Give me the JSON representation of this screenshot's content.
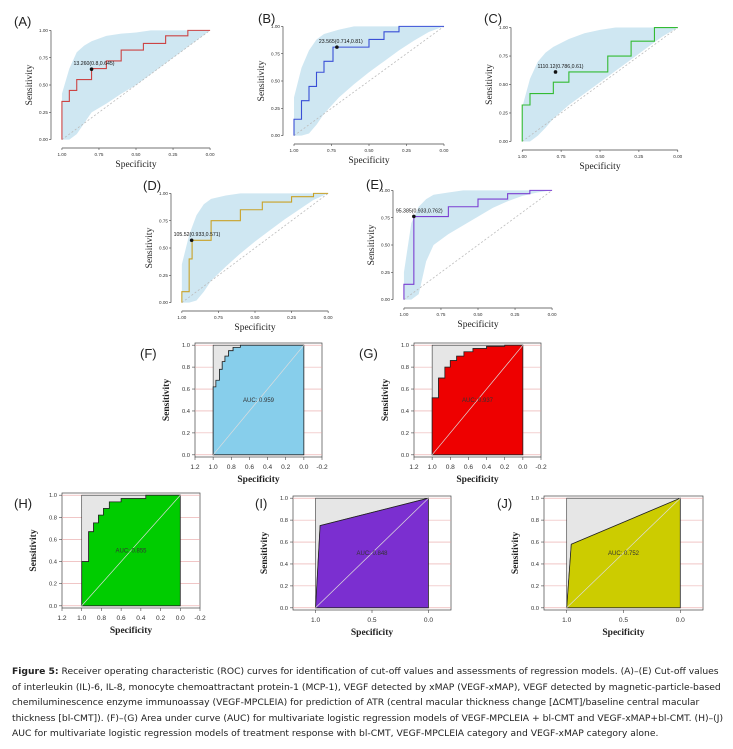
{
  "figure": {
    "caption_label": "Figure 5:",
    "caption_text": "Receiver operating characteristic (ROC) curves for identification of cut-off values and assessments of regression models. (A)–(E) Cut-off values of interleukin (IL)-6, IL-8, monocyte chemoattractant protein-1 (MCP-1), VEGF detected by xMAP (VEGF-xMAP), VEGF detected by magnetic-particle-based chemiluminescence enzyme immunoassay (VEGF-MPCLEIA) for prediction of ATR (central macular thickness change [ΔCMT]/baseline central macular thickness [bl-CMT]). (F)–(G) Area under curve (AUC) for multivariate logistic regression models of VEGF-MPCLEIA + bl-CMT and VEGF-xMAP+bl-CMT. (H)–(J) AUC for multivariate logistic regression models of treatment response with bl-CMT, VEGF-MPCLEIA category and VEGF-xMAP category alone."
  },
  "colors": {
    "ci_band": "#cfe7f2",
    "diag": "#bbbbbb",
    "grid_red": "#e8a3a3",
    "auc_gray": "#e6e6e6"
  },
  "chart_data": [
    {
      "panel": "(A)",
      "type": "line",
      "style": "ci",
      "xlabel": "Specificity",
      "ylabel": "Sensitivity",
      "xticks": [
        "1.00",
        "0.75",
        "0.50",
        "0.25",
        "0.00"
      ],
      "yticks": [
        "0.00",
        "0.25",
        "0.50",
        "0.75",
        "1.00"
      ],
      "xlim": [
        1,
        0
      ],
      "ylim": [
        0,
        1
      ],
      "line_color": "#cc4444",
      "x": [
        1,
        1,
        0.95,
        0.95,
        0.9,
        0.9,
        0.8,
        0.8,
        0.7,
        0.7,
        0.6,
        0.6,
        0.45,
        0.45,
        0.3,
        0.3,
        0.15,
        0.15,
        0
      ],
      "y": [
        0,
        0.35,
        0.35,
        0.45,
        0.45,
        0.55,
        0.55,
        0.65,
        0.65,
        0.72,
        0.72,
        0.82,
        0.82,
        0.88,
        0.88,
        0.95,
        0.95,
        1,
        1
      ],
      "ci_upper": [
        0.42,
        0.65,
        0.8,
        0.86,
        0.9,
        0.95,
        0.97,
        0.98,
        1,
        1,
        1,
        1,
        1
      ],
      "ci_lower": [
        0,
        0,
        0.05,
        0.15,
        0.25,
        0.33,
        0.42,
        0.5,
        0.6,
        0.7,
        0.8,
        0.9,
        1
      ],
      "ci_x": [
        1,
        0.95,
        0.9,
        0.85,
        0.8,
        0.7,
        0.6,
        0.5,
        0.4,
        0.3,
        0.2,
        0.1,
        0
      ],
      "annotation": "13.260(0.8,0.645)",
      "annot_point": [
        0.8,
        0.645
      ]
    },
    {
      "panel": "(B)",
      "type": "line",
      "style": "ci",
      "xlabel": "Specificity",
      "ylabel": "Sensitivity",
      "xticks": [
        "1.00",
        "0.75",
        "0.50",
        "0.25",
        "0.00"
      ],
      "yticks": [
        "0.00",
        "0.25",
        "0.50",
        "0.75",
        "1.00"
      ],
      "xlim": [
        1,
        0
      ],
      "ylim": [
        0,
        1
      ],
      "line_color": "#3a4fd6",
      "x": [
        1,
        1,
        0.95,
        0.95,
        0.9,
        0.9,
        0.85,
        0.85,
        0.8,
        0.8,
        0.74,
        0.74,
        0.5,
        0.5,
        0.4,
        0.4,
        0.3,
        0.3,
        0
      ],
      "y": [
        0,
        0.15,
        0.15,
        0.32,
        0.32,
        0.45,
        0.45,
        0.58,
        0.58,
        0.68,
        0.68,
        0.81,
        0.81,
        0.88,
        0.88,
        0.95,
        0.95,
        1,
        1
      ],
      "ci_upper": [
        0.35,
        0.62,
        0.78,
        0.88,
        0.93,
        0.97,
        1,
        1,
        1,
        1,
        1,
        1,
        1
      ],
      "ci_lower": [
        0,
        0,
        0.02,
        0.1,
        0.2,
        0.35,
        0.47,
        0.58,
        0.68,
        0.78,
        0.87,
        0.95,
        1
      ],
      "ci_x": [
        1,
        0.95,
        0.9,
        0.85,
        0.8,
        0.7,
        0.6,
        0.5,
        0.4,
        0.3,
        0.2,
        0.1,
        0
      ],
      "annotation": "23.565(0.714,0.81)",
      "annot_point": [
        0.714,
        0.81
      ]
    },
    {
      "panel": "(C)",
      "type": "line",
      "style": "ci",
      "xlabel": "Specificity",
      "ylabel": "Sensitivity",
      "xticks": [
        "1.00",
        "0.75",
        "0.50",
        "0.25",
        "0.00"
      ],
      "yticks": [
        "0.00",
        "0.25",
        "0.50",
        "0.75",
        "1.00"
      ],
      "xlim": [
        1,
        0
      ],
      "ylim": [
        0,
        1
      ],
      "line_color": "#33bb33",
      "x": [
        1,
        1,
        0.95,
        0.95,
        0.8,
        0.8,
        0.7,
        0.7,
        0.45,
        0.45,
        0.3,
        0.3,
        0.15,
        0.15,
        0
      ],
      "y": [
        0,
        0.32,
        0.32,
        0.42,
        0.42,
        0.52,
        0.52,
        0.61,
        0.61,
        0.75,
        0.75,
        0.88,
        0.88,
        1,
        1
      ],
      "ci_upper": [
        0.3,
        0.55,
        0.7,
        0.78,
        0.83,
        0.9,
        0.95,
        0.98,
        1,
        1,
        1,
        1,
        1
      ],
      "ci_lower": [
        0,
        0,
        0.05,
        0.12,
        0.2,
        0.32,
        0.42,
        0.52,
        0.62,
        0.72,
        0.82,
        0.92,
        1
      ],
      "ci_x": [
        1,
        0.95,
        0.9,
        0.85,
        0.8,
        0.7,
        0.6,
        0.5,
        0.4,
        0.3,
        0.2,
        0.1,
        0
      ],
      "annotation": "1110.12(0.786,0.61)",
      "annot_point": [
        0.786,
        0.61
      ]
    },
    {
      "panel": "(D)",
      "type": "line",
      "style": "ci",
      "xlabel": "Specificity",
      "ylabel": "Sensitivity",
      "xticks": [
        "1.00",
        "0.75",
        "0.50",
        "0.25",
        "0.00"
      ],
      "yticks": [
        "0.00",
        "0.25",
        "0.50",
        "0.75",
        "1.00"
      ],
      "xlim": [
        1,
        0
      ],
      "ylim": [
        0,
        1
      ],
      "line_color": "#c9a227",
      "x": [
        1,
        1,
        0.95,
        0.95,
        0.93,
        0.93,
        0.8,
        0.8,
        0.6,
        0.6,
        0.45,
        0.45,
        0.25,
        0.25,
        0.1,
        0.1,
        0
      ],
      "y": [
        0,
        0.1,
        0.1,
        0.4,
        0.4,
        0.57,
        0.57,
        0.75,
        0.75,
        0.85,
        0.85,
        0.92,
        0.92,
        0.97,
        0.97,
        1,
        1
      ],
      "ci_upper": [
        0.35,
        0.62,
        0.8,
        0.9,
        0.95,
        0.98,
        1,
        1,
        1,
        1,
        1,
        1,
        1
      ],
      "ci_lower": [
        0,
        0,
        0.02,
        0.1,
        0.2,
        0.33,
        0.45,
        0.56,
        0.66,
        0.76,
        0.85,
        0.94,
        1
      ],
      "ci_x": [
        1,
        0.95,
        0.9,
        0.85,
        0.8,
        0.7,
        0.6,
        0.5,
        0.4,
        0.3,
        0.2,
        0.1,
        0
      ],
      "annotation": "105.52(0.933,0.571)",
      "annot_point": [
        0.933,
        0.571
      ]
    },
    {
      "panel": "(E)",
      "type": "line",
      "style": "ci",
      "xlabel": "Specificity",
      "ylabel": "Sensitivity",
      "xticks": [
        "1.00",
        "0.75",
        "0.50",
        "0.25",
        "0.00"
      ],
      "yticks": [
        "0.00",
        "0.25",
        "0.50",
        "0.75",
        "1.00"
      ],
      "xlim": [
        1,
        0
      ],
      "ylim": [
        0,
        1
      ],
      "line_color": "#7b3fd1",
      "x": [
        1,
        1,
        0.933,
        0.933,
        0.7,
        0.7,
        0.5,
        0.5,
        0.3,
        0.3,
        0.15,
        0.15,
        0
      ],
      "y": [
        0,
        0.14,
        0.14,
        0.76,
        0.76,
        0.85,
        0.85,
        0.92,
        0.92,
        0.97,
        0.97,
        1,
        1
      ],
      "ci_upper": [
        0.25,
        0.7,
        0.85,
        0.92,
        0.96,
        0.98,
        1,
        1,
        1,
        1,
        1,
        1,
        1
      ],
      "ci_lower": [
        0,
        0,
        0.05,
        0.35,
        0.5,
        0.6,
        0.68,
        0.76,
        0.84,
        0.9,
        0.95,
        0.98,
        1
      ],
      "ci_x": [
        1,
        0.95,
        0.9,
        0.85,
        0.8,
        0.7,
        0.6,
        0.5,
        0.4,
        0.3,
        0.2,
        0.1,
        0
      ],
      "annotation": "95.385(0.933,0.762)",
      "annot_point": [
        0.933,
        0.762
      ]
    },
    {
      "panel": "(F)",
      "type": "area",
      "style": "auc",
      "xlabel": "Specificity",
      "ylabel": "Sensitivity",
      "xticks": [
        "1.2",
        "1.0",
        "0.8",
        "0.6",
        "0.4",
        "0.2",
        "0.0",
        "-0.2"
      ],
      "yticks": [
        "0.0",
        "0.2",
        "0.4",
        "0.6",
        "0.8",
        "1.0"
      ],
      "xlim": [
        1.2,
        -0.2
      ],
      "ylim": [
        0,
        1
      ],
      "fill_color": "#87ceeb",
      "auc_label": "AUC: 0.959",
      "x": [
        1,
        1,
        0.97,
        0.97,
        0.93,
        0.93,
        0.9,
        0.9,
        0.87,
        0.87,
        0.83,
        0.83,
        0.78,
        0.78,
        0.7,
        0.7,
        0
      ],
      "y": [
        0,
        0.62,
        0.62,
        0.68,
        0.68,
        0.78,
        0.78,
        0.85,
        0.85,
        0.9,
        0.9,
        0.95,
        0.95,
        0.98,
        0.98,
        1,
        1
      ]
    },
    {
      "panel": "(G)",
      "type": "area",
      "style": "auc",
      "xlabel": "Specificity",
      "ylabel": "Sensitivity",
      "xticks": [
        "1.2",
        "1.0",
        "0.8",
        "0.6",
        "0.4",
        "0.2",
        "0.0",
        "-0.2"
      ],
      "yticks": [
        "0.0",
        "0.2",
        "0.4",
        "0.6",
        "0.8",
        "1.0"
      ],
      "xlim": [
        1.2,
        -0.2
      ],
      "ylim": [
        0,
        1
      ],
      "fill_color": "#ee0000",
      "auc_label": "AUC: 0.937",
      "x": [
        1,
        1,
        0.93,
        0.93,
        0.86,
        0.86,
        0.8,
        0.8,
        0.73,
        0.73,
        0.65,
        0.65,
        0.55,
        0.55,
        0.4,
        0.4,
        0.2,
        0.2,
        0
      ],
      "y": [
        0,
        0.52,
        0.52,
        0.7,
        0.7,
        0.8,
        0.8,
        0.86,
        0.86,
        0.9,
        0.9,
        0.94,
        0.94,
        0.97,
        0.97,
        0.99,
        0.99,
        1,
        1
      ]
    },
    {
      "panel": "(H)",
      "type": "area",
      "style": "auc",
      "xlabel": "Specificity",
      "ylabel": "Sensitivity",
      "xticks": [
        "1.2",
        "1.0",
        "0.8",
        "0.6",
        "0.4",
        "0.2",
        "0.0",
        "-0.2"
      ],
      "yticks": [
        "0.0",
        "0.2",
        "0.4",
        "0.6",
        "0.8",
        "1.0"
      ],
      "xlim": [
        1.2,
        -0.2
      ],
      "ylim": [
        0,
        1
      ],
      "fill_color": "#00cc00",
      "auc_label": "AUC: 0.855",
      "x": [
        1,
        1,
        0.93,
        0.93,
        0.88,
        0.88,
        0.83,
        0.83,
        0.78,
        0.78,
        0.72,
        0.72,
        0.6,
        0.6,
        0.35,
        0.35,
        0
      ],
      "y": [
        0,
        0.4,
        0.4,
        0.67,
        0.67,
        0.75,
        0.75,
        0.82,
        0.82,
        0.88,
        0.88,
        0.94,
        0.94,
        0.97,
        0.97,
        1,
        1
      ]
    },
    {
      "panel": "(I)",
      "type": "area",
      "style": "auc",
      "xlabel": "Specificity",
      "ylabel": "Sensitivity",
      "xticks": [
        "1.0",
        "0.5",
        "0.0"
      ],
      "yticks": [
        "0.0",
        "0.2",
        "0.4",
        "0.6",
        "0.8",
        "1.0"
      ],
      "xlim": [
        1.2,
        -0.2
      ],
      "ylim": [
        0,
        1
      ],
      "fill_color": "#7b2fd0",
      "auc_label": "AUC: 0.848",
      "x": [
        1,
        0.96,
        0
      ],
      "y": [
        0,
        0.75,
        1
      ]
    },
    {
      "panel": "(J)",
      "type": "area",
      "style": "auc",
      "xlabel": "Specificity",
      "ylabel": "Sensitivity",
      "xticks": [
        "1.0",
        "0.5",
        "0.0"
      ],
      "yticks": [
        "0.0",
        "0.2",
        "0.4",
        "0.6",
        "0.8",
        "1.0"
      ],
      "xlim": [
        1.2,
        -0.2
      ],
      "ylim": [
        0,
        1
      ],
      "fill_color": "#cccc00",
      "auc_label": "AUC: 0.752",
      "x": [
        1,
        0.96,
        0
      ],
      "y": [
        0,
        0.58,
        1
      ]
    }
  ]
}
